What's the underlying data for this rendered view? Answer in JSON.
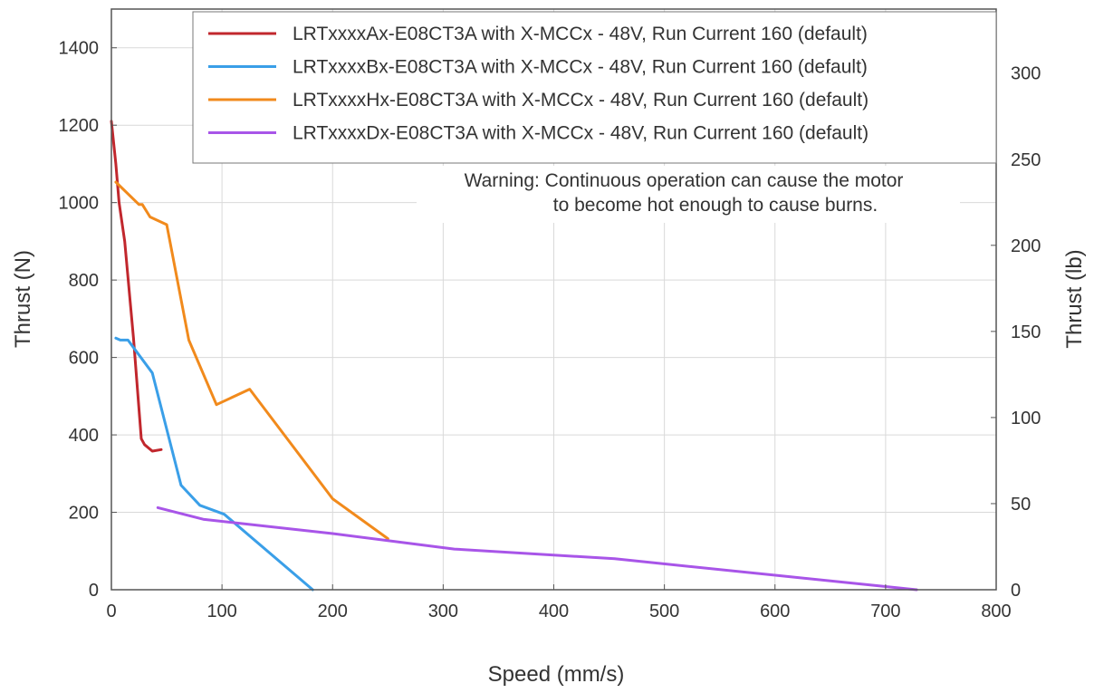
{
  "chart_data": {
    "type": "line",
    "xlabel": "Speed (mm/s)",
    "ylabel": "Thrust (N)",
    "ylabel_right": "Thrust (lb)",
    "xlim": [
      0,
      800
    ],
    "ylim": [
      0,
      1500
    ],
    "ylim_right": [
      0,
      337.2
    ],
    "x_ticks": [
      "0",
      "100",
      "200",
      "300",
      "400",
      "500",
      "600",
      "700",
      "800"
    ],
    "y_ticks": [
      "0",
      "200",
      "400",
      "600",
      "800",
      "1000",
      "1200",
      "1400"
    ],
    "y_ticks_right": [
      "0",
      "50",
      "100",
      "150",
      "200",
      "250",
      "300"
    ],
    "grid": true,
    "legend_position": "top-right",
    "annotation": {
      "line1": "Warning: Continuous operation can cause the motor",
      "line2": "to become hot enough to cause burns."
    },
    "series": [
      {
        "name": "LRTxxxxAx-E08CT3A with X-MCCx - 48V, Run Current 160 (default)",
        "color": "#c1272d",
        "x": [
          0,
          4,
          7,
          12,
          20,
          27,
          30,
          37,
          45
        ],
        "y": [
          1210,
          1100,
          1000,
          900,
          650,
          390,
          375,
          358,
          362
        ]
      },
      {
        "name": "LRTxxxxBx-E08CT3A with X-MCCx - 48V, Run Current 160 (default)",
        "color": "#3a9fe8",
        "x": [
          4,
          8,
          15,
          37,
          63,
          80,
          102,
          182
        ],
        "y": [
          650,
          645,
          645,
          560,
          270,
          218,
          195,
          0
        ]
      },
      {
        "name": "LRTxxxxHx-E08CT3A with X-MCCx - 48V, Run Current 160 (default)",
        "color": "#f18a1c",
        "x": [
          4,
          25,
          28,
          35,
          50,
          70,
          95,
          125,
          200,
          250
        ],
        "y": [
          1053,
          995,
          995,
          963,
          943,
          645,
          478,
          518,
          235,
          132
        ]
      },
      {
        "name": "LRTxxxxDx-E08CT3A with X-MCCx - 48V, Run Current 160 (default)",
        "color": "#a855e8",
        "x": [
          42,
          83,
          200,
          310,
          455,
          728
        ],
        "y": [
          212,
          182,
          145,
          105,
          80,
          0
        ]
      }
    ]
  }
}
